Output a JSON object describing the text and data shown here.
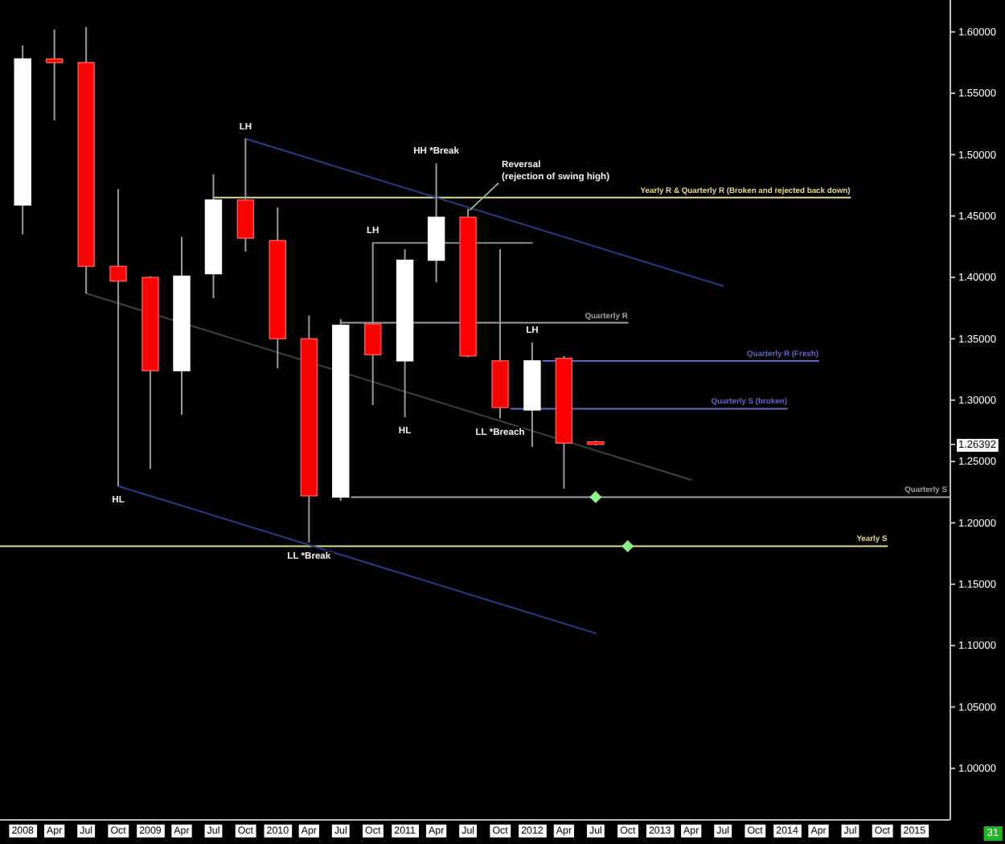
{
  "chart_data": {
    "type": "candlestick",
    "x": [
      "2008-01",
      "2008-04",
      "2008-07",
      "2008-10",
      "2009-01",
      "2009-04",
      "2009-07",
      "2009-10",
      "2010-01",
      "2010-04",
      "2010-07",
      "2010-10",
      "2011-01",
      "2011-04",
      "2011-07",
      "2011-10",
      "2012-01",
      "2012-04",
      "2012-07"
    ],
    "ohlc": [
      [
        1.459,
        1.589,
        1.435,
        1.578
      ],
      [
        1.578,
        1.602,
        1.528,
        1.575
      ],
      [
        1.575,
        1.604,
        1.387,
        1.409
      ],
      [
        1.409,
        1.472,
        1.23,
        1.397
      ],
      [
        1.4,
        1.401,
        1.244,
        1.324
      ],
      [
        1.324,
        1.433,
        1.288,
        1.401
      ],
      [
        1.403,
        1.484,
        1.383,
        1.463
      ],
      [
        1.463,
        1.513,
        1.421,
        1.432
      ],
      [
        1.43,
        1.457,
        1.326,
        1.35
      ],
      [
        1.35,
        1.369,
        1.184,
        1.222
      ],
      [
        1.221,
        1.366,
        1.218,
        1.361
      ],
      [
        1.362,
        1.428,
        1.296,
        1.337
      ],
      [
        1.332,
        1.423,
        1.286,
        1.414
      ],
      [
        1.414,
        1.493,
        1.396,
        1.449
      ],
      [
        1.449,
        1.456,
        1.335,
        1.336
      ],
      [
        1.332,
        1.423,
        1.285,
        1.294
      ],
      [
        1.292,
        1.347,
        1.262,
        1.332
      ],
      [
        1.334,
        1.336,
        1.228,
        1.265
      ],
      [
        1.266,
        1.267,
        1.263,
        1.26392
      ]
    ],
    "colors": [
      "#ffffff",
      "#ff0000",
      "#ff0000",
      "#ff0000",
      "#ff0000",
      "#ffffff",
      "#ffffff",
      "#ff0000",
      "#ff0000",
      "#ff0000",
      "#ffffff",
      "#ff0000",
      "#ffffff",
      "#ffffff",
      "#ff0000",
      "#ff0000",
      "#ffffff",
      "#ff0000",
      "#ff0000"
    ],
    "xlim": [
      "2007-10-28",
      "2015-04-14"
    ],
    "xticks": [
      {
        "value": "2008-01",
        "label": "2008"
      },
      {
        "value": "2008-04",
        "label": "Apr"
      },
      {
        "value": "2008-07",
        "label": "Jul"
      },
      {
        "value": "2008-10",
        "label": "Oct"
      },
      {
        "value": "2009-01",
        "label": "2009"
      },
      {
        "value": "2009-04",
        "label": "Apr"
      },
      {
        "value": "2009-07",
        "label": "Jul"
      },
      {
        "value": "2009-10",
        "label": "Oct"
      },
      {
        "value": "2010-01",
        "label": "2010"
      },
      {
        "value": "2010-04",
        "label": "Apr"
      },
      {
        "value": "2010-07",
        "label": "Jul"
      },
      {
        "value": "2010-10",
        "label": "Oct"
      },
      {
        "value": "2011-01",
        "label": "2011"
      },
      {
        "value": "2011-04",
        "label": "Apr"
      },
      {
        "value": "2011-07",
        "label": "Jul"
      },
      {
        "value": "2011-10",
        "label": "Oct"
      },
      {
        "value": "2012-01",
        "label": "2012"
      },
      {
        "value": "2012-04",
        "label": "Apr"
      },
      {
        "value": "2012-07",
        "label": "Jul"
      },
      {
        "value": "2012-10",
        "label": "Oct"
      },
      {
        "value": "2013-01",
        "label": "2013"
      },
      {
        "value": "2013-04",
        "label": "Apr"
      },
      {
        "value": "2013-07",
        "label": "Jul"
      },
      {
        "value": "2013-10",
        "label": "Oct"
      },
      {
        "value": "2014-01",
        "label": "2014"
      },
      {
        "value": "2014-04",
        "label": "Apr"
      },
      {
        "value": "2014-07",
        "label": "Jul"
      },
      {
        "value": "2014-10",
        "label": "Oct"
      },
      {
        "value": "2015-01",
        "label": "2015"
      }
    ],
    "ylim": [
      0.958,
      1.626
    ],
    "yticks": [
      {
        "value": 1.0,
        "label": "1.00000"
      },
      {
        "value": 1.05,
        "label": "1.05000"
      },
      {
        "value": 1.1,
        "label": "1.10000"
      },
      {
        "value": 1.15,
        "label": "1.15000"
      },
      {
        "value": 1.2,
        "label": "1.20000"
      },
      {
        "value": 1.25,
        "label": "1.25000"
      },
      1.26392,
      {
        "value": 1.3,
        "label": "1.30000"
      },
      {
        "value": 1.35,
        "label": "1.35000"
      },
      {
        "value": 1.4,
        "label": "1.40000"
      },
      {
        "value": 1.45,
        "label": "1.45000"
      },
      {
        "value": 1.5,
        "label": "1.50000"
      },
      {
        "value": 1.55,
        "label": "1.55000"
      },
      {
        "value": 1.6,
        "label": "1.60000"
      }
    ],
    "series": [
      {
        "type": "line",
        "name": "Yearly R & Quarterly R (Broken and rejected back down)",
        "color": "#dcdc8c",
        "x": [
          "2009-07",
          "2014-07"
        ],
        "values": [
          1.465,
          1.465
        ]
      },
      {
        "type": "line",
        "name": "Quarterly R",
        "color": "#a0a0a0",
        "x": [
          "2010-07",
          "2012-10"
        ],
        "values": [
          1.363,
          1.363
        ]
      },
      {
        "type": "line",
        "name": "Quarterly R (Fresh)",
        "color": "#6464c0",
        "x": [
          "2012-02",
          "2014-04"
        ],
        "values": [
          1.332,
          1.332
        ]
      },
      {
        "type": "line",
        "name": "Quarterly S (broken)",
        "color": "#6464c0",
        "x": [
          "2011-11",
          "2014-01"
        ],
        "values": [
          1.293,
          1.293
        ]
      },
      {
        "type": "line",
        "name": "Quarterly S",
        "color": "#a0a0a0",
        "x": [
          "2010-08",
          "2015-04-14"
        ],
        "values": [
          1.221,
          1.221
        ]
      },
      {
        "type": "line",
        "name": "Yearly S",
        "color": "#dcdc8c",
        "x": [
          "2007-10-28",
          "2014-10-15"
        ],
        "values": [
          1.181,
          1.181
        ]
      },
      {
        "type": "line",
        "color": "#2c3c84",
        "x": [
          "2009-10",
          "2013-07"
        ],
        "values": [
          1.513,
          1.393
        ]
      },
      {
        "type": "line",
        "color": "#404040",
        "x": [
          "2008-07",
          "2013-04"
        ],
        "values": [
          1.387,
          1.235
        ]
      },
      {
        "type": "line",
        "color": "#2c3c84",
        "x": [
          "2008-10",
          "2012-07"
        ],
        "values": [
          1.23,
          1.11
        ]
      },
      {
        "type": "line",
        "color": "#8a8a8a",
        "x": [
          "2010-10",
          "2012-01"
        ],
        "values": [
          1.428,
          1.428
        ]
      },
      {
        "type": "scatter",
        "color": "#8cf08c",
        "marker": "diamond",
        "x": [
          "2012-07",
          "2012-10"
        ],
        "values": [
          1.221,
          1.181
        ]
      }
    ],
    "annotations": [
      {
        "text": "LH",
        "x": "2009-10",
        "y": 1.513
      },
      {
        "text": "HL",
        "x": "2008-10",
        "y": 1.23
      },
      {
        "text": "LL *Break",
        "x": "2010-04",
        "y": 1.184
      },
      {
        "text": "LH",
        "x": "2010-10",
        "y": 1.428
      },
      {
        "text": "HL",
        "x": "2011-01",
        "y": 1.286
      },
      {
        "text": "HH *Break",
        "x": "2011-04",
        "y": 1.493
      },
      {
        "text": "Reversal\n(rejection of swing high)",
        "x": "2011-07",
        "y": 1.456
      },
      {
        "text": "LL *Breach",
        "x": "2011-10",
        "y": 1.285
      },
      {
        "text": "LH",
        "x": "2012-01",
        "y": 1.347
      },
      "31"
    ]
  }
}
